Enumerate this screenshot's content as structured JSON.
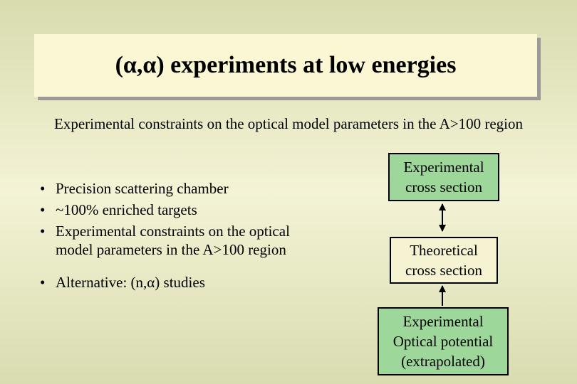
{
  "title": "(α,α) experiments at low energies",
  "subtitle": "Experimental constraints on the optical model parameters in the A>100 region",
  "bullets": [
    "Precision scattering chamber",
    "~100% enriched targets",
    "Experimental constraints on the optical model parameters in the A>100 region",
    "Alternative: (n,α) studies"
  ],
  "boxes": [
    [
      "Experimental",
      "cross section"
    ],
    [
      "Theoretical",
      "cross section"
    ],
    [
      "Experimental",
      "Optical  potential",
      "(extrapolated)"
    ]
  ]
}
